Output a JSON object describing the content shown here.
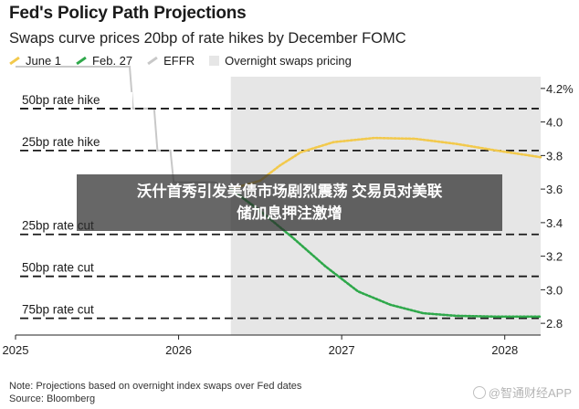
{
  "header": {
    "title": "Fed's Policy Path Projections",
    "subtitle": "Swaps curve prices 20bp of rate hikes by December FOMC"
  },
  "legend": [
    {
      "label": "June 1",
      "color": "#f2c94c",
      "style": "solid"
    },
    {
      "label": "Feb. 27",
      "color": "#2ea84a",
      "style": "solid"
    },
    {
      "label": "EFFR",
      "color": "#c8c8c8",
      "style": "solid"
    },
    {
      "label": "Overnight swaps pricing",
      "color": "#e6e6e6",
      "style": "box"
    }
  ],
  "chart_data": {
    "type": "line",
    "x_ticks": [
      "2025",
      "2026",
      "2027",
      "2028"
    ],
    "y_ticks": [
      "2.8",
      "3.0",
      "3.2",
      "3.4",
      "3.6",
      "3.8",
      "4.0",
      "4.2%"
    ],
    "y_tick_values": [
      2.8,
      3.0,
      3.2,
      3.4,
      3.6,
      3.8,
      4.0,
      4.2
    ],
    "ylim": [
      2.73,
      4.27
    ],
    "xlim": [
      2025.0,
      2028.22
    ],
    "shaded_region": {
      "label": "Overnight swaps pricing",
      "x_start": 2026.32,
      "x_end": 2028.22
    },
    "reference_lines": [
      {
        "label": "50bp rate hike",
        "y": 4.08
      },
      {
        "label": "25bp rate hike",
        "y": 3.83
      },
      {
        "label": "25bp rate cut",
        "y": 3.33
      },
      {
        "label": "50bp rate cut",
        "y": 3.08
      },
      {
        "label": "75bp rate cut",
        "y": 2.83
      }
    ],
    "series": [
      {
        "name": "EFFR",
        "color": "#c8c8c8",
        "points": [
          [
            2025.0,
            4.33
          ],
          [
            2025.7,
            4.33
          ],
          [
            2025.72,
            4.08
          ],
          [
            2025.85,
            4.08
          ],
          [
            2025.87,
            3.83
          ],
          [
            2025.95,
            3.83
          ],
          [
            2025.97,
            3.64
          ],
          [
            2026.22,
            3.64
          ],
          [
            2026.32,
            3.6
          ]
        ]
      },
      {
        "name": "June 1",
        "color": "#f2c94c",
        "points": [
          [
            2026.32,
            3.6
          ],
          [
            2026.5,
            3.65
          ],
          [
            2026.62,
            3.74
          ],
          [
            2026.75,
            3.82
          ],
          [
            2026.95,
            3.88
          ],
          [
            2027.2,
            3.905
          ],
          [
            2027.45,
            3.9
          ],
          [
            2027.7,
            3.87
          ],
          [
            2027.95,
            3.83
          ],
          [
            2028.22,
            3.79
          ]
        ]
      },
      {
        "name": "Feb. 27",
        "color": "#2ea84a",
        "points": [
          [
            2026.32,
            3.6
          ],
          [
            2026.5,
            3.47
          ],
          [
            2026.7,
            3.31
          ],
          [
            2026.9,
            3.14
          ],
          [
            2027.1,
            2.99
          ],
          [
            2027.3,
            2.91
          ],
          [
            2027.5,
            2.86
          ],
          [
            2027.7,
            2.845
          ],
          [
            2027.95,
            2.84
          ],
          [
            2028.22,
            2.84
          ]
        ]
      }
    ]
  },
  "footer": {
    "note": "Note: Projections based on overnight index swaps over Fed dates",
    "source": "Source: Bloomberg"
  },
  "overlay": {
    "line1": "沃什首秀引发美债市场剧烈震荡 交易员对美联",
    "line2": "储加息押注激增"
  },
  "watermark": {
    "text": "@智通财经APP"
  }
}
